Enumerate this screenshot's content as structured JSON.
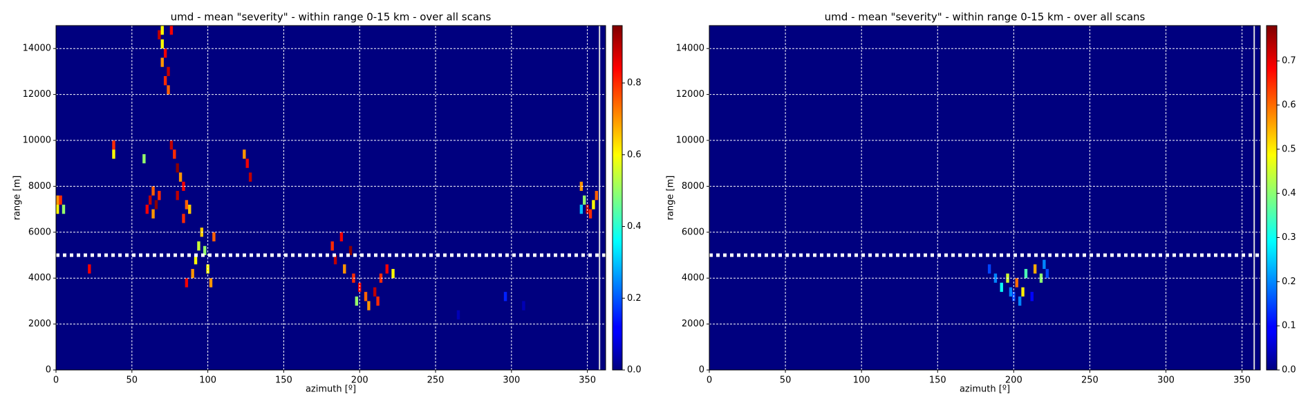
{
  "chart_data": [
    {
      "type": "heatmap",
      "title": "umd - mean \"severity\" - within range 0-15 km - over all scans",
      "x_label": "azimuth [º]",
      "y_label": "range [m]",
      "xlim": [
        0,
        362
      ],
      "ylim": [
        0,
        15000
      ],
      "xticks": [
        0,
        50,
        100,
        150,
        200,
        250,
        300,
        350
      ],
      "yticks": [
        0,
        2000,
        4000,
        6000,
        8000,
        10000,
        12000,
        14000
      ],
      "grid": true,
      "colormap": "jet",
      "background": "#00007f",
      "hline": 5000,
      "clim": [
        0,
        0.96
      ],
      "cticks": [
        {
          "value": 0,
          "label": "0.0"
        },
        0.2,
        0.4,
        0.6,
        0.8
      ],
      "x": [
        1,
        3,
        1,
        5,
        38,
        38,
        22,
        58,
        60,
        62,
        64,
        66,
        68,
        64,
        68,
        70,
        72,
        70,
        74,
        72,
        74,
        76,
        70,
        76,
        78,
        80,
        82,
        84,
        80,
        86,
        84,
        88,
        124,
        126,
        128,
        86,
        90,
        92,
        94,
        96,
        98,
        100,
        104,
        102,
        182,
        184,
        188,
        190,
        194,
        196,
        200,
        204,
        206,
        210,
        214,
        218,
        222,
        198,
        212,
        296,
        265,
        308,
        346,
        348,
        350,
        352,
        354,
        356,
        346
      ],
      "y": [
        7000,
        7400,
        7400,
        7000,
        9800,
        9400,
        4400,
        9200,
        7000,
        7400,
        7800,
        7200,
        7600,
        6800,
        14600,
        14200,
        13800,
        13400,
        13000,
        12600,
        12200,
        14800,
        14800,
        9800,
        9400,
        8800,
        8400,
        8000,
        7600,
        7200,
        6600,
        7000,
        9400,
        9000,
        8400,
        3800,
        4200,
        4800,
        5400,
        6000,
        5200,
        4400,
        5800,
        3800,
        5400,
        4800,
        5800,
        4400,
        5200,
        4000,
        3600,
        3200,
        2800,
        3400,
        4000,
        4400,
        4200,
        3000,
        3000,
        3200,
        2400,
        2800,
        8000,
        7400,
        7000,
        6800,
        7200,
        7600,
        7000
      ],
      "values": [
        0.6,
        0.8,
        0.7,
        0.5,
        0.8,
        0.6,
        0.85,
        0.5,
        0.85,
        0.9,
        0.75,
        0.95,
        0.8,
        0.7,
        0.9,
        0.6,
        0.85,
        0.7,
        0.9,
        0.8,
        0.75,
        0.85,
        0.6,
        0.9,
        0.8,
        0.95,
        0.7,
        0.85,
        0.9,
        0.75,
        0.8,
        0.65,
        0.7,
        0.85,
        0.9,
        0.85,
        0.7,
        0.6,
        0.55,
        0.65,
        0.5,
        0.6,
        0.75,
        0.7,
        0.8,
        0.9,
        0.85,
        0.7,
        0.95,
        0.8,
        0.85,
        0.75,
        0.7,
        0.9,
        0.8,
        0.85,
        0.6,
        0.5,
        0.8,
        0.15,
        0.05,
        0.05,
        0.7,
        0.5,
        0.9,
        0.8,
        0.6,
        0.75,
        0.3
      ]
    },
    {
      "type": "heatmap",
      "title": "umd - mean \"severity\" - within range 0-15 km - over all scans",
      "x_label": "azimuth [º]",
      "y_label": "range [m]",
      "xlim": [
        0,
        362
      ],
      "ylim": [
        0,
        15000
      ],
      "xticks": [
        0,
        50,
        100,
        150,
        200,
        250,
        300,
        350
      ],
      "yticks": [
        0,
        2000,
        4000,
        6000,
        8000,
        10000,
        12000,
        14000
      ],
      "grid": true,
      "colormap": "jet",
      "background": "#00007f",
      "hline": 5000,
      "clim": [
        0,
        0.78
      ],
      "cticks": [
        {
          "value": 0,
          "label": "0.0"
        },
        0.1,
        0.2,
        0.3,
        0.4,
        0.5,
        0.6,
        0.7
      ],
      "x": [
        184,
        188,
        192,
        196,
        198,
        200,
        202,
        204,
        206,
        208,
        212,
        214,
        218,
        220,
        222
      ],
      "y": [
        4400,
        4000,
        3600,
        4000,
        3400,
        3200,
        3800,
        3000,
        3400,
        4200,
        3200,
        4400,
        4000,
        4600,
        4200
      ],
      "values": [
        0.15,
        0.2,
        0.3,
        0.45,
        0.2,
        0.15,
        0.6,
        0.2,
        0.5,
        0.35,
        0.1,
        0.55,
        0.4,
        0.2,
        0.15
      ]
    }
  ]
}
